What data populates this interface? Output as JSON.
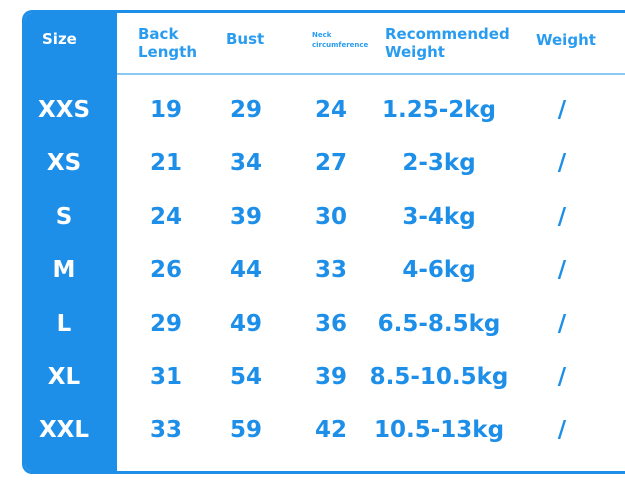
{
  "table": {
    "headers": [
      "Size",
      "Back Length",
      "Bust",
      "Neck circumference",
      "Recommended Weight",
      "Weight"
    ],
    "rows": [
      [
        "XXS",
        19,
        29,
        24,
        "1.25-2kg",
        "/"
      ],
      [
        "XS",
        21,
        34,
        27,
        "2-3kg",
        "/"
      ],
      [
        "S",
        24,
        39,
        30,
        "3-4kg",
        "/"
      ],
      [
        "M",
        26,
        44,
        33,
        "4-6kg",
        "/"
      ],
      [
        "L",
        29,
        49,
        36,
        "6.5-8.5kg",
        "/"
      ],
      [
        "XL",
        31,
        54,
        39,
        "8.5-10.5kg",
        "/"
      ],
      [
        "XXL",
        33,
        59,
        42,
        "10.5-13kg",
        "/"
      ]
    ]
  }
}
